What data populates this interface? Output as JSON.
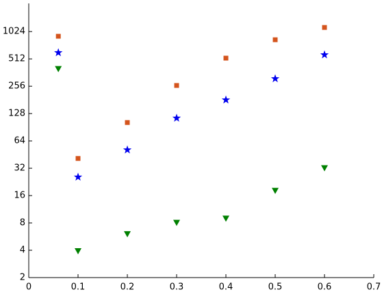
{
  "chart_data": {
    "type": "scatter",
    "log_scale_y": true,
    "log_base_y": 2,
    "grid": false,
    "x": [
      0.06,
      0.1,
      0.2,
      0.3,
      0.4,
      0.5,
      0.6
    ],
    "series": [
      {
        "marker": "square",
        "color": "#d4541d",
        "values": [
          909,
          41,
          102,
          261,
          522,
          832,
          1136
        ]
      },
      {
        "marker": "star",
        "color": "#0000ee",
        "values": [
          600,
          25.6,
          51,
          114,
          181,
          310,
          568
        ]
      },
      {
        "marker": "triangle-down",
        "color": "#008000",
        "values": [
          395,
          3.9,
          6,
          8,
          8.9,
          18,
          32
        ]
      }
    ],
    "xlim": [
      0,
      0.7
    ],
    "xticks": [
      0,
      0.1,
      0.2,
      0.3,
      0.4,
      0.5,
      0.6,
      0.7
    ],
    "ylim": [
      2,
      2090
    ],
    "yticks": [
      2,
      4,
      8,
      16,
      32,
      64,
      128,
      256,
      512,
      1024
    ]
  }
}
